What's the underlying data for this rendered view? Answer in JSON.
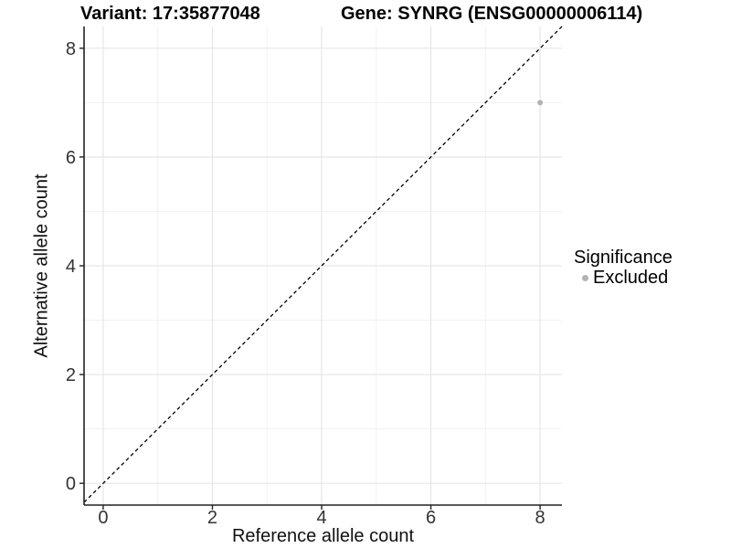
{
  "colors": {
    "background": "#ffffff",
    "axis": "#222222",
    "tick_label": "#333333",
    "text": "#000000",
    "grid_major": "#e6e6e6",
    "grid_minor": "#f2f2f2",
    "point": "#b3b3b3"
  },
  "chart_data": {
    "type": "scatter",
    "title_left": "Variant: 17:35877048",
    "title_right": "Gene: SYNRG (ENSG00000006114)",
    "xlabel": "Reference allele count",
    "ylabel": "Alternative allele count",
    "xlim": [
      -0.35,
      8.4
    ],
    "ylim": [
      -0.4,
      8.4
    ],
    "x_ticks": [
      0,
      2,
      4,
      6,
      8
    ],
    "y_ticks": [
      0,
      2,
      4,
      6,
      8
    ],
    "x_minor": [
      1,
      3,
      5,
      7
    ],
    "y_minor": [
      1,
      3,
      5,
      7
    ],
    "grid": "major+minor",
    "legend_position": "right",
    "legend_title": "Significance",
    "identity_line": {
      "type": "dashed",
      "color": "#000000",
      "from": [
        -0.35,
        -0.35
      ],
      "to": [
        8.4,
        8.4
      ]
    },
    "series": [
      {
        "name": "Excluded",
        "color": "#b3b3b3",
        "points": [
          {
            "x": 8,
            "y": 7
          }
        ]
      }
    ]
  }
}
